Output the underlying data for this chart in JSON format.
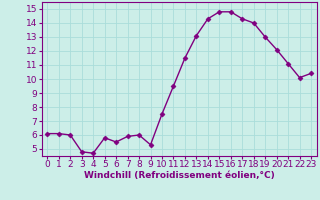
{
  "x": [
    0,
    1,
    2,
    3,
    4,
    5,
    6,
    7,
    8,
    9,
    10,
    11,
    12,
    13,
    14,
    15,
    16,
    17,
    18,
    19,
    20,
    21,
    22,
    23
  ],
  "y": [
    6.1,
    6.1,
    6.0,
    4.8,
    4.7,
    5.8,
    5.5,
    5.9,
    6.0,
    5.3,
    7.5,
    9.5,
    11.5,
    13.1,
    14.3,
    14.8,
    14.8,
    14.3,
    14.0,
    13.0,
    12.1,
    11.1,
    10.1,
    10.4
  ],
  "line_color": "#800080",
  "marker": "D",
  "marker_size": 2.5,
  "bg_color": "#cceee8",
  "grid_color": "#aaddda",
  "xlabel": "Windchill (Refroidissement éolien,°C)",
  "xlabel_color": "#800080",
  "tick_color": "#800080",
  "spine_color": "#800080",
  "ylim": [
    4.5,
    15.5
  ],
  "xlim": [
    -0.5,
    23.5
  ],
  "yticks": [
    5,
    6,
    7,
    8,
    9,
    10,
    11,
    12,
    13,
    14,
    15
  ],
  "xticks": [
    0,
    1,
    2,
    3,
    4,
    5,
    6,
    7,
    8,
    9,
    10,
    11,
    12,
    13,
    14,
    15,
    16,
    17,
    18,
    19,
    20,
    21,
    22,
    23
  ],
  "tick_fontsize": 6.5,
  "xlabel_fontsize": 6.5,
  "line_width": 1.0
}
